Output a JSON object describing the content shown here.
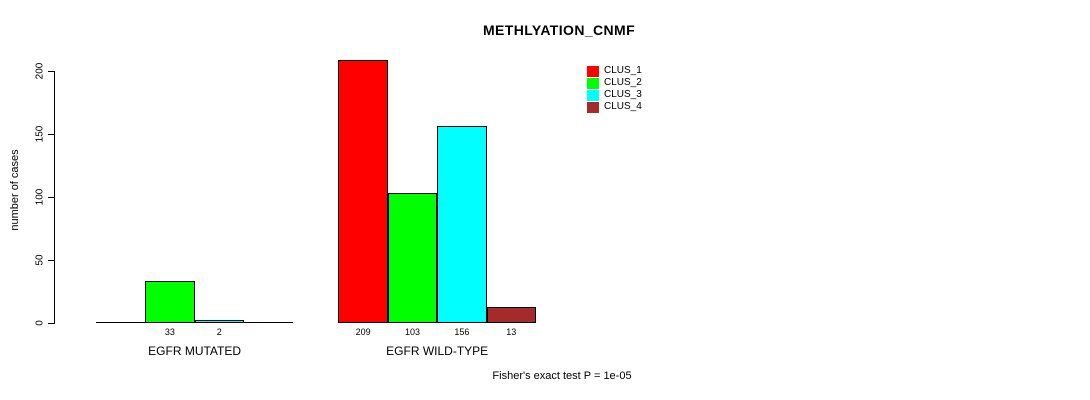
{
  "chart_data": {
    "type": "bar",
    "title": "METHLYATION_CNMF",
    "ylabel": "number of cases",
    "xlabel": "",
    "annotation": "Fisher's exact test P = 1e-05",
    "ylim": [
      0,
      200
    ],
    "yticks": [
      0,
      50,
      100,
      150,
      200
    ],
    "grid": false,
    "legend_position": "top-right",
    "bar_border_color": "#000000",
    "series": [
      {
        "name": "CLUS_1",
        "color": "#FF0000"
      },
      {
        "name": "CLUS_2",
        "color": "#00FF00"
      },
      {
        "name": "CLUS_3",
        "color": "#00FFFF"
      },
      {
        "name": "CLUS_4",
        "color": "#A52A2A"
      }
    ],
    "groups": [
      {
        "label": "EGFR MUTATED",
        "values": [
          0,
          33,
          2,
          0
        ]
      },
      {
        "label": "EGFR WILD-TYPE",
        "values": [
          209,
          103,
          156,
          13
        ]
      }
    ]
  }
}
